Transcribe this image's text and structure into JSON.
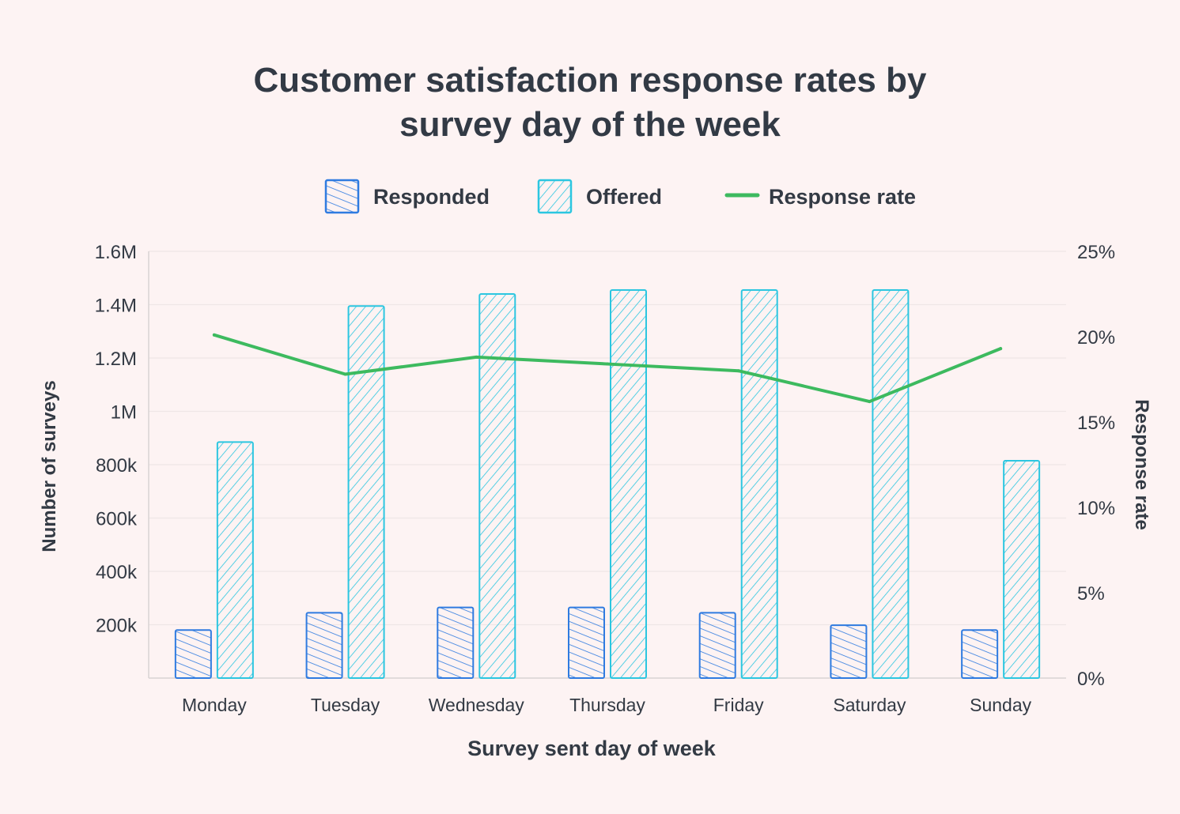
{
  "chart_data": {
    "type": "bar",
    "title_lines": [
      "Customer satisfaction response rates by",
      "survey day of the week"
    ],
    "xlabel": "Survey sent day of week",
    "ylabel": "Number of surveys",
    "y2label": "Response rate",
    "categories": [
      "Monday",
      "Tuesday",
      "Wednesday",
      "Thursday",
      "Friday",
      "Saturday",
      "Sunday"
    ],
    "ylim": [
      0,
      1600000
    ],
    "y_ticks": [
      200000,
      400000,
      600000,
      800000,
      1000000,
      1200000,
      1400000,
      1600000
    ],
    "y_tick_labels": [
      "200k",
      "400k",
      "600k",
      "800k",
      "1M",
      "1.2M",
      "1.4M",
      "1.6M"
    ],
    "y2lim": [
      0,
      25
    ],
    "y2_ticks": [
      0,
      5,
      10,
      15,
      20,
      25
    ],
    "y2_tick_labels": [
      "0%",
      "5%",
      "10%",
      "15%",
      "20%",
      "25%"
    ],
    "grid": true,
    "legend_position": "top-center",
    "series": [
      {
        "name": "Responded",
        "kind": "bar",
        "color": "#2f7be0",
        "values": [
          180000,
          245000,
          265000,
          265000,
          245000,
          198000,
          180000
        ]
      },
      {
        "name": "Offered",
        "kind": "bar",
        "color": "#2cc6e0",
        "values": [
          885000,
          1395000,
          1440000,
          1455000,
          1455000,
          1455000,
          815000
        ]
      },
      {
        "name": "Response rate",
        "kind": "line",
        "axis": "right",
        "color": "#3dba5f",
        "values": [
          20.1,
          17.8,
          18.8,
          18.4,
          18.0,
          16.2,
          19.3
        ]
      }
    ]
  }
}
